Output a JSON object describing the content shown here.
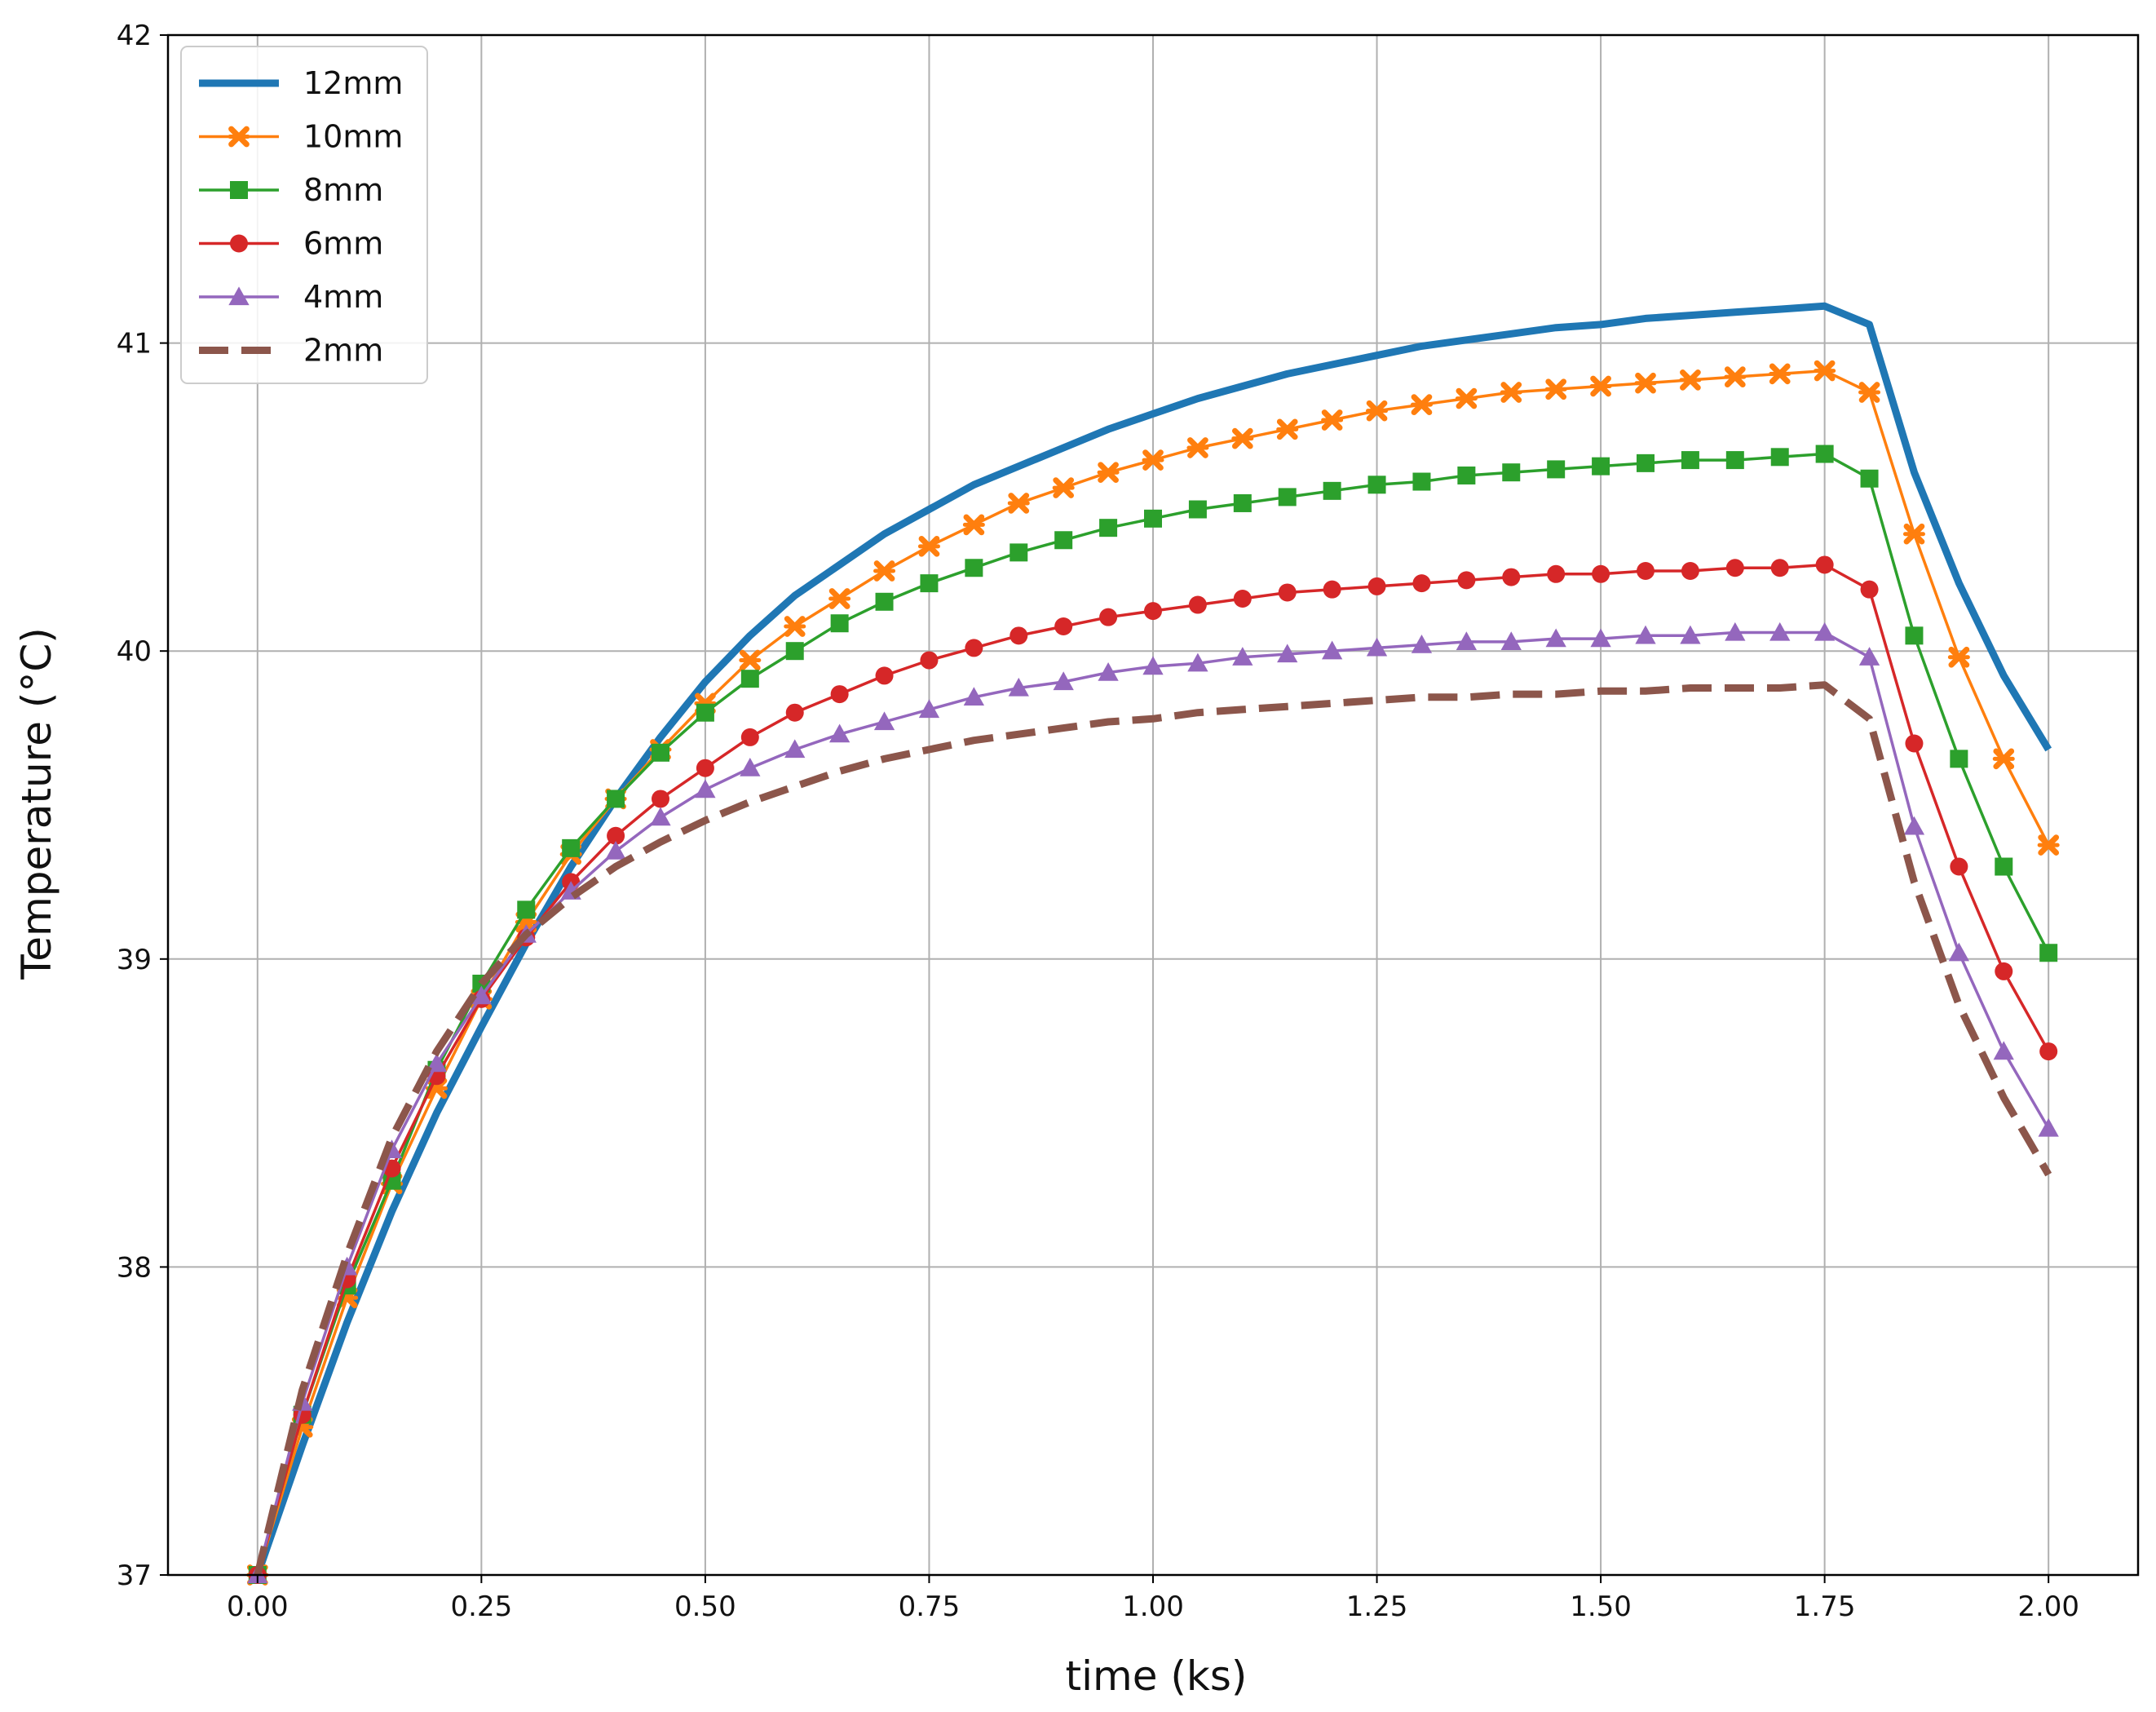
{
  "chart_data": {
    "type": "line",
    "xlabel": "time (ks)",
    "ylabel": "Temperature (°C)",
    "xlim": [
      -0.1,
      2.1
    ],
    "ylim": [
      37,
      42
    ],
    "xticks": [
      "0.00",
      "0.25",
      "0.50",
      "0.75",
      "1.00",
      "1.25",
      "1.50",
      "1.75",
      "2.00"
    ],
    "yticks": [
      "37",
      "38",
      "39",
      "40",
      "41",
      "42"
    ],
    "grid": true,
    "legend_position": "top-left",
    "x": [
      0.0,
      0.05,
      0.1,
      0.15,
      0.2,
      0.25,
      0.3,
      0.35,
      0.4,
      0.45,
      0.5,
      0.55,
      0.6,
      0.65,
      0.7,
      0.75,
      0.8,
      0.85,
      0.9,
      0.95,
      1.0,
      1.05,
      1.1,
      1.15,
      1.2,
      1.25,
      1.3,
      1.35,
      1.4,
      1.45,
      1.5,
      1.55,
      1.6,
      1.65,
      1.7,
      1.75,
      1.8,
      1.85,
      1.9,
      1.95,
      2.0
    ],
    "series": [
      {
        "name": "12mm",
        "color": "#1f77b4",
        "style": "solid-thick",
        "marker": "none",
        "values": [
          37.0,
          37.42,
          37.82,
          38.18,
          38.5,
          38.78,
          39.05,
          39.3,
          39.52,
          39.72,
          39.9,
          40.05,
          40.18,
          40.28,
          40.38,
          40.46,
          40.54,
          40.6,
          40.66,
          40.72,
          40.77,
          40.82,
          40.86,
          40.9,
          40.93,
          40.96,
          40.99,
          41.01,
          41.03,
          41.05,
          41.06,
          41.08,
          41.09,
          41.1,
          41.11,
          41.12,
          41.06,
          40.58,
          40.22,
          39.92,
          39.68
        ]
      },
      {
        "name": "10mm",
        "color": "#ff7f0e",
        "style": "solid",
        "marker": "x",
        "values": [
          37.0,
          37.48,
          37.9,
          38.27,
          38.58,
          38.87,
          39.12,
          39.34,
          39.52,
          39.68,
          39.83,
          39.97,
          40.08,
          40.17,
          40.26,
          40.34,
          40.41,
          40.48,
          40.53,
          40.58,
          40.62,
          40.66,
          40.69,
          40.72,
          40.75,
          40.78,
          40.8,
          40.82,
          40.84,
          40.85,
          40.86,
          40.87,
          40.88,
          40.89,
          40.9,
          40.91,
          40.84,
          40.38,
          39.98,
          39.65,
          39.37
        ]
      },
      {
        "name": "8mm",
        "color": "#2ca02c",
        "style": "solid",
        "marker": "square",
        "values": [
          37.0,
          37.52,
          37.94,
          38.28,
          38.64,
          38.92,
          39.16,
          39.36,
          39.52,
          39.67,
          39.8,
          39.91,
          40.0,
          40.09,
          40.16,
          40.22,
          40.27,
          40.32,
          40.36,
          40.4,
          40.43,
          40.46,
          40.48,
          40.5,
          40.52,
          40.54,
          40.55,
          40.57,
          40.58,
          40.59,
          40.6,
          40.61,
          40.62,
          40.62,
          40.63,
          40.64,
          40.56,
          40.05,
          39.65,
          39.3,
          39.02
        ]
      },
      {
        "name": "6mm",
        "color": "#d62728",
        "style": "solid",
        "marker": "circle",
        "values": [
          37.0,
          37.52,
          37.96,
          38.32,
          38.62,
          38.87,
          39.07,
          39.25,
          39.4,
          39.52,
          39.62,
          39.72,
          39.8,
          39.86,
          39.92,
          39.97,
          40.01,
          40.05,
          40.08,
          40.11,
          40.13,
          40.15,
          40.17,
          40.19,
          40.2,
          40.21,
          40.22,
          40.23,
          40.24,
          40.25,
          40.25,
          40.26,
          40.26,
          40.27,
          40.27,
          40.28,
          40.2,
          39.7,
          39.3,
          38.96,
          38.7
        ]
      },
      {
        "name": "4mm",
        "color": "#9467bd",
        "style": "solid",
        "marker": "triangle",
        "values": [
          37.0,
          37.56,
          38.0,
          38.38,
          38.66,
          38.88,
          39.08,
          39.22,
          39.35,
          39.46,
          39.55,
          39.62,
          39.68,
          39.73,
          39.77,
          39.81,
          39.85,
          39.88,
          39.9,
          39.93,
          39.95,
          39.96,
          39.98,
          39.99,
          40.0,
          40.01,
          40.02,
          40.03,
          40.03,
          40.04,
          40.04,
          40.05,
          40.05,
          40.06,
          40.06,
          40.06,
          39.98,
          39.43,
          39.02,
          38.7,
          38.45
        ]
      },
      {
        "name": "2mm",
        "color": "#8c564b",
        "style": "dashed-thick",
        "marker": "none",
        "values": [
          37.0,
          37.6,
          38.04,
          38.42,
          38.7,
          38.92,
          39.08,
          39.2,
          39.3,
          39.38,
          39.45,
          39.51,
          39.56,
          39.61,
          39.65,
          39.68,
          39.71,
          39.73,
          39.75,
          39.77,
          39.78,
          39.8,
          39.81,
          39.82,
          39.83,
          39.84,
          39.85,
          39.85,
          39.86,
          39.86,
          39.87,
          39.87,
          39.88,
          39.88,
          39.88,
          39.89,
          39.78,
          39.25,
          38.85,
          38.55,
          38.3
        ]
      }
    ]
  }
}
